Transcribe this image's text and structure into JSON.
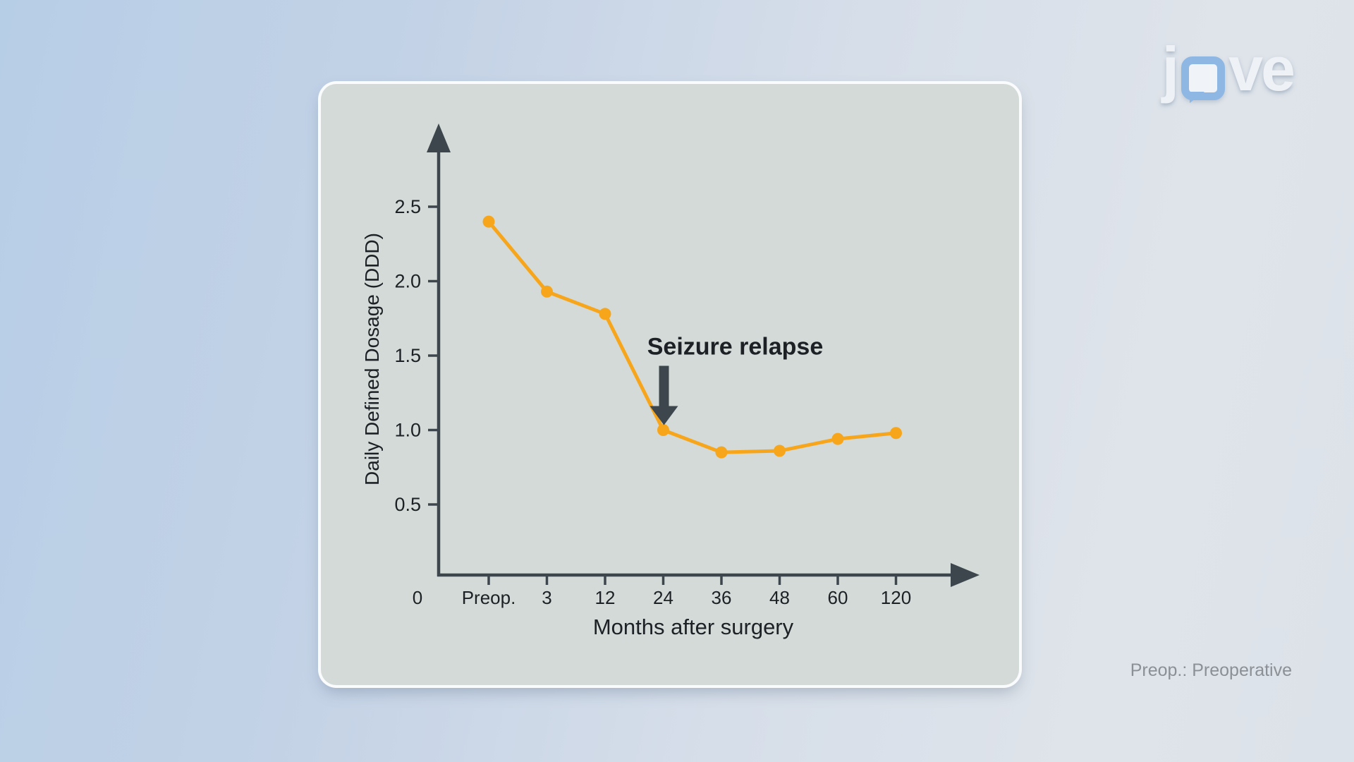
{
  "logo": {
    "letter_j": "j",
    "letters_ve": "ve",
    "bubble_color": "#8fb7e3"
  },
  "footnote": "Preop.: Preoperative",
  "chart_data": {
    "type": "line",
    "title": "",
    "xlabel": "Months after surgery",
    "ylabel": "Daily Defined Dosage (DDD)",
    "x_origin_label": "0",
    "categories": [
      "Preop.",
      "3",
      "12",
      "24",
      "36",
      "48",
      "60",
      "120"
    ],
    "series": [
      {
        "name": "Daily Defined Dosage",
        "values": [
          2.4,
          1.93,
          1.78,
          1.0,
          0.85,
          0.86,
          0.94,
          0.98
        ]
      }
    ],
    "y_ticks": [
      0.5,
      1.0,
      1.5,
      2.0,
      2.5
    ],
    "ylim": [
      0,
      2.9
    ],
    "grid": false,
    "legend": "none",
    "annotation": {
      "text": "Seizure relapse",
      "target_category": "24",
      "target_value": 1.0
    },
    "colors": {
      "line": "#f7a61c",
      "axis": "#3e464d",
      "text": "#1d2125"
    }
  }
}
